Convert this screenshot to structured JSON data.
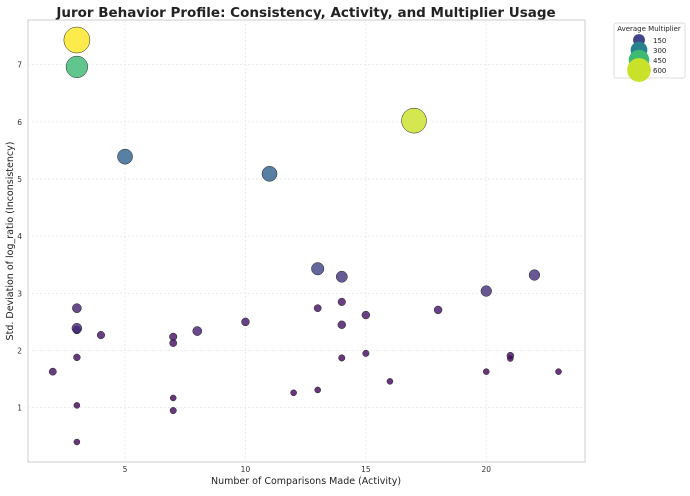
{
  "chart_data": {
    "type": "scatter",
    "title": "Juror Behavior Profile: Consistency, Activity, and Multiplier Usage",
    "xlabel": "Number of Comparisons Made (Activity)",
    "ylabel": "Std. Deviation of log_ratio (Inconsistency)",
    "xlim": [
      0.97,
      24.1
    ],
    "ylim": [
      0.05,
      7.78
    ],
    "xticks": [
      5,
      10,
      15,
      20
    ],
    "yticks": [
      1,
      2,
      3,
      4,
      5,
      6,
      7
    ],
    "grid": true,
    "size_color_encoding": "Average Multiplier",
    "colormap": "viridis",
    "color_range": [
      20,
      650
    ],
    "legend": {
      "title": "Average Multiplier",
      "placement": "outside top-right",
      "entries": [
        150,
        300,
        450,
        600
      ]
    },
    "points": [
      {
        "x": 3,
        "y": 7.43,
        "m": 650
      },
      {
        "x": 3,
        "y": 6.96,
        "m": 450
      },
      {
        "x": 5,
        "y": 5.39,
        "m": 220
      },
      {
        "x": 11,
        "y": 5.09,
        "m": 220
      },
      {
        "x": 17,
        "y": 6.02,
        "m": 600
      },
      {
        "x": 13,
        "y": 3.43,
        "m": 150
      },
      {
        "x": 14,
        "y": 3.29,
        "m": 120
      },
      {
        "x": 22,
        "y": 3.32,
        "m": 110
      },
      {
        "x": 20,
        "y": 3.04,
        "m": 110
      },
      {
        "x": 3,
        "y": 2.74,
        "m": 80
      },
      {
        "x": 3,
        "y": 2.39,
        "m": 95
      },
      {
        "x": 3,
        "y": 2.36,
        "m": 60
      },
      {
        "x": 4,
        "y": 2.27,
        "m": 55
      },
      {
        "x": 7,
        "y": 2.24,
        "m": 55
      },
      {
        "x": 7,
        "y": 2.13,
        "m": 50
      },
      {
        "x": 8,
        "y": 2.34,
        "m": 80
      },
      {
        "x": 10,
        "y": 2.5,
        "m": 60
      },
      {
        "x": 13,
        "y": 2.74,
        "m": 50
      },
      {
        "x": 14,
        "y": 2.85,
        "m": 55
      },
      {
        "x": 14,
        "y": 2.45,
        "m": 60
      },
      {
        "x": 15,
        "y": 2.62,
        "m": 60
      },
      {
        "x": 18,
        "y": 2.71,
        "m": 60
      },
      {
        "x": 3,
        "y": 1.88,
        "m": 45
      },
      {
        "x": 2,
        "y": 1.63,
        "m": 50
      },
      {
        "x": 14,
        "y": 1.87,
        "m": 40
      },
      {
        "x": 15,
        "y": 1.95,
        "m": 40
      },
      {
        "x": 21,
        "y": 1.91,
        "m": 45
      },
      {
        "x": 21,
        "y": 1.86,
        "m": 35
      },
      {
        "x": 20,
        "y": 1.63,
        "m": 35
      },
      {
        "x": 23,
        "y": 1.63,
        "m": 35
      },
      {
        "x": 16,
        "y": 1.46,
        "m": 35
      },
      {
        "x": 7,
        "y": 1.17,
        "m": 35
      },
      {
        "x": 12,
        "y": 1.26,
        "m": 35
      },
      {
        "x": 13,
        "y": 1.31,
        "m": 35
      },
      {
        "x": 3,
        "y": 1.04,
        "m": 35
      },
      {
        "x": 7,
        "y": 0.95,
        "m": 40
      },
      {
        "x": 3,
        "y": 0.4,
        "m": 35
      }
    ]
  }
}
